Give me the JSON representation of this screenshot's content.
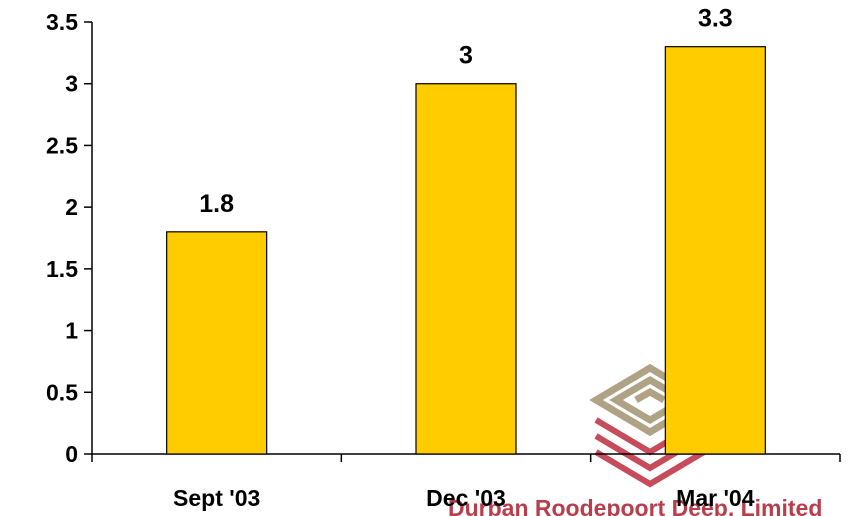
{
  "chart_data": {
    "type": "bar",
    "title": "",
    "xlabel": "",
    "ylabel": "",
    "categories": [
      "Sept '03",
      "Dec '03",
      "Mar '04"
    ],
    "values": [
      1.8,
      3,
      3.3
    ],
    "data_labels": [
      "1.8",
      "3",
      "3.3"
    ],
    "ylim": [
      0,
      3.5
    ],
    "yticks": [
      0,
      0.5,
      1,
      1.5,
      2,
      2.5,
      3,
      3.5
    ],
    "ytick_labels": [
      "0",
      "0.5",
      "1",
      "1.5",
      "2",
      "2.5",
      "3",
      "3.5"
    ],
    "grid": false,
    "legend": "none",
    "bar_color": "#ffcc00",
    "bar_edge_color": "#000000"
  },
  "watermark": {
    "text": "Durban Roodepoort Deep, Limited",
    "colors": [
      "#a89a78",
      "#c0394a"
    ]
  }
}
